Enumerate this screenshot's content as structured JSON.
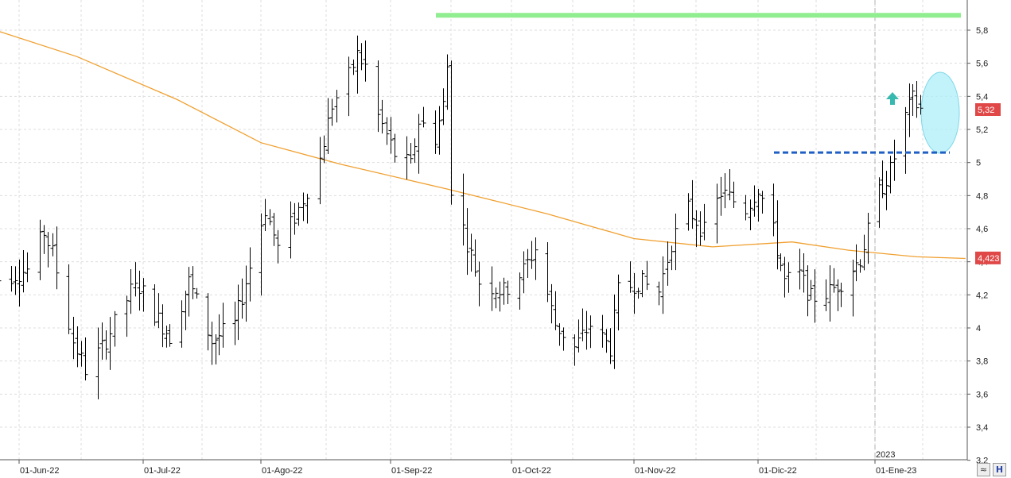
{
  "chart_data": {
    "type": "ohlc",
    "y_axis": {
      "range": [
        3.2,
        5.9
      ],
      "ticks": [
        "5,8",
        "5,6",
        "5,4",
        "5,2",
        "5",
        "4,8",
        "4,6",
        "4,4",
        "4,2",
        "4",
        "3,8",
        "3,6",
        "3,4",
        "3,2"
      ],
      "tick_values": [
        5.8,
        5.6,
        5.4,
        5.2,
        5.0,
        4.8,
        4.6,
        4.4,
        4.2,
        4.0,
        3.8,
        3.6,
        3.4,
        3.2
      ]
    },
    "x_axis": {
      "labels": [
        "01-Jun-22",
        "01-Jul-22",
        "01-Ago-22",
        "01-Sep-22",
        "01-Oct-22",
        "01-Nov-22",
        "01-Dic-22",
        "01-Ene-23"
      ],
      "year_marker": "2023"
    },
    "grid": true,
    "last_price_label": "5,32",
    "last_price": 5.32,
    "moving_average_label": "4,423",
    "moving_average_last": 4.423,
    "moving_average_anchors": [
      [
        "2022-05-25",
        5.81
      ],
      [
        "2022-06-15",
        5.64
      ],
      [
        "2022-07-10",
        5.38
      ],
      [
        "2022-08-01",
        5.12
      ],
      [
        "2022-08-20",
        4.99
      ],
      [
        "2022-09-15",
        4.84
      ],
      [
        "2022-10-10",
        4.69
      ],
      [
        "2022-11-01",
        4.54
      ],
      [
        "2022-11-20",
        4.49
      ],
      [
        "2022-12-10",
        4.52
      ],
      [
        "2022-12-25",
        4.47
      ],
      [
        "2023-01-12",
        4.43
      ],
      [
        "2023-01-25",
        4.42
      ]
    ],
    "price_anchors": [
      [
        "2022-05-25",
        4.28
      ],
      [
        "2022-06-03",
        4.35
      ],
      [
        "2022-06-07",
        4.58
      ],
      [
        "2022-06-09",
        4.45
      ],
      [
        "2022-06-14",
        3.92
      ],
      [
        "2022-06-17",
        3.75
      ],
      [
        "2022-06-21",
        3.88
      ],
      [
        "2022-06-28",
        4.22
      ],
      [
        "2022-06-30",
        4.25
      ],
      [
        "2022-07-05",
        4.05
      ],
      [
        "2022-07-08",
        3.95
      ],
      [
        "2022-07-13",
        4.28
      ],
      [
        "2022-07-19",
        3.92
      ],
      [
        "2022-07-25",
        4.02
      ],
      [
        "2022-07-28",
        4.28
      ],
      [
        "2022-08-02",
        4.72
      ],
      [
        "2022-08-05",
        4.48
      ],
      [
        "2022-08-10",
        4.72
      ],
      [
        "2022-08-15",
        5.02
      ],
      [
        "2022-08-18",
        5.35
      ],
      [
        "2022-08-22",
        5.52
      ],
      [
        "2022-08-24",
        5.65
      ],
      [
        "2022-08-26",
        5.58
      ],
      [
        "2022-08-29",
        5.28
      ],
      [
        "2022-09-02",
        5.05
      ],
      [
        "2022-09-06",
        4.98
      ],
      [
        "2022-09-08",
        5.25
      ],
      [
        "2022-09-12",
        5.15
      ],
      [
        "2022-09-14",
        5.35
      ],
      [
        "2022-09-15",
        5.58
      ],
      [
        "2022-09-16",
        4.85
      ],
      [
        "2022-09-20",
        4.52
      ],
      [
        "2022-09-23",
        4.28
      ],
      [
        "2022-09-29",
        4.22
      ],
      [
        "2022-10-04",
        4.35
      ],
      [
        "2022-10-07",
        4.48
      ],
      [
        "2022-10-12",
        4.02
      ],
      [
        "2022-10-17",
        3.88
      ],
      [
        "2022-10-21",
        4.02
      ],
      [
        "2022-10-26",
        3.88
      ],
      [
        "2022-10-28",
        4.22
      ],
      [
        "2022-11-02",
        4.28
      ],
      [
        "2022-11-07",
        4.22
      ],
      [
        "2022-11-10",
        4.52
      ],
      [
        "2022-11-14",
        4.72
      ],
      [
        "2022-11-18",
        4.58
      ],
      [
        "2022-11-22",
        4.82
      ],
      [
        "2022-11-28",
        4.72
      ],
      [
        "2022-12-01",
        4.85
      ],
      [
        "2022-12-05",
        4.58
      ],
      [
        "2022-12-08",
        4.28
      ],
      [
        "2022-12-12",
        4.32
      ],
      [
        "2022-12-15",
        4.18
      ],
      [
        "2022-12-20",
        4.22
      ],
      [
        "2022-12-23",
        4.28
      ],
      [
        "2022-12-28",
        4.42
      ],
      [
        "2023-01-02",
        4.82
      ],
      [
        "2023-01-05",
        4.95
      ],
      [
        "2023-01-09",
        5.28
      ],
      [
        "2023-01-11",
        5.38
      ],
      [
        "2023-01-13",
        5.32
      ]
    ],
    "annotations": {
      "resistance_line_value": 5.89,
      "support_breakout_value": 5.06,
      "breakout_highlight": "ellipse",
      "up_arrow": "up-arrow"
    },
    "colors": {
      "bars": "#000000",
      "moving_average": "#f0a030",
      "resistance_line": "#90ee90",
      "breakout_line": "#1f5fc4",
      "highlight_ellipse": "#aeeef8",
      "arrow": "#37b9b0",
      "price_tag": "#e04848"
    }
  }
}
